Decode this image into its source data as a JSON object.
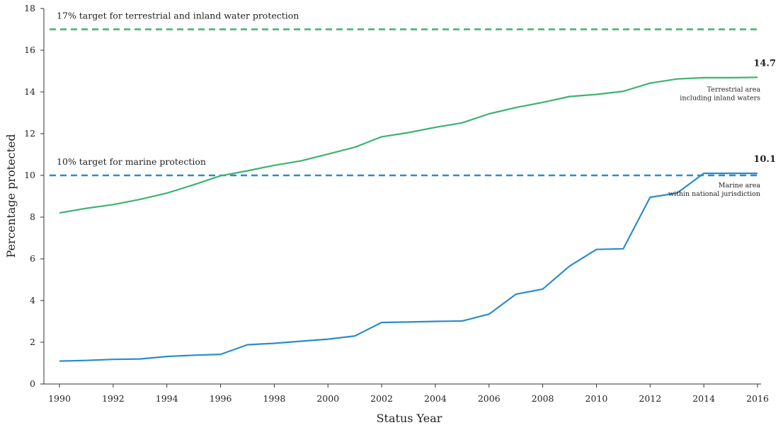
{
  "chart_data": {
    "type": "line",
    "title": "",
    "xlabel": "Status Year",
    "ylabel": "Percentage protected",
    "xlim": [
      1990,
      2016
    ],
    "ylim": [
      0,
      18
    ],
    "x_ticks": [
      "1990",
      "1992",
      "1994",
      "1996",
      "1998",
      "2000",
      "2002",
      "2004",
      "2006",
      "2008",
      "2010",
      "2012",
      "2014",
      "2016"
    ],
    "y_ticks": [
      "0",
      "2",
      "4",
      "6",
      "8",
      "10",
      "12",
      "14",
      "16",
      "18"
    ],
    "grid": false,
    "x": [
      1990,
      1991,
      1992,
      1993,
      1994,
      1995,
      1996,
      1997,
      1998,
      1999,
      2000,
      2001,
      2002,
      2003,
      2004,
      2005,
      2006,
      2007,
      2008,
      2009,
      2010,
      2011,
      2012,
      2013,
      2014,
      2015,
      2016
    ],
    "series": [
      {
        "key": "terrestrial",
        "label_lines": [
          "Terrestrial area",
          "including inland waters"
        ],
        "color": "#3cb371",
        "end_label": "14.7",
        "values": [
          8.2,
          8.42,
          8.6,
          8.85,
          9.15,
          9.55,
          9.98,
          10.22,
          10.48,
          10.7,
          11.02,
          11.35,
          11.85,
          12.05,
          12.3,
          12.52,
          12.95,
          13.25,
          13.5,
          13.78,
          13.88,
          14.03,
          14.42,
          14.62,
          14.68,
          14.68,
          14.7
        ]
      },
      {
        "key": "marine",
        "label_lines": [
          "Marine area",
          "within national jurisdiction"
        ],
        "color": "#2b8ccc",
        "end_label": "10.1",
        "values": [
          1.1,
          1.13,
          1.18,
          1.2,
          1.32,
          1.38,
          1.42,
          1.88,
          1.95,
          2.05,
          2.15,
          2.3,
          2.95,
          2.97,
          3.0,
          3.02,
          3.35,
          4.3,
          4.55,
          5.65,
          6.45,
          6.48,
          8.95,
          9.15,
          10.1,
          10.1,
          10.1
        ]
      }
    ],
    "targets": [
      {
        "key": "terrestrial-target",
        "value": 17,
        "label": "17% target for terrestrial and inland water protection",
        "color": "#3cb371"
      },
      {
        "key": "marine-target",
        "value": 10,
        "label": "10% target for marine protection",
        "color": "#2b8ccc"
      }
    ]
  }
}
